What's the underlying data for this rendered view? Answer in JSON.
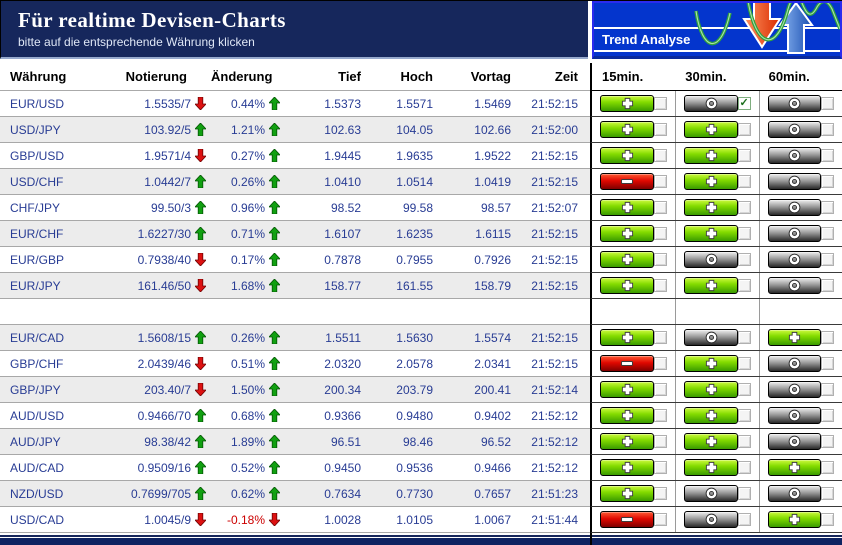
{
  "header": {
    "title": "Für realtime Devisen-Charts",
    "subtitle": "bitte auf die entsprechende Währung klicken",
    "trend_panel_label": "Trend Analyse"
  },
  "colors": {
    "header_navy": "#16275c",
    "panel_blue": "#0435cd",
    "data_text": "#283c94",
    "up_arrow_green": "#11a011",
    "down_arrow_red": "#dd1111",
    "negative_change_text": "#cc0000",
    "row_alt_gray": "#ececec",
    "trend_plus_green": "#84dc00",
    "trend_neutral_gray": "#9a9a9a",
    "trend_minus_red": "#e00800"
  },
  "table": {
    "columns": [
      "Währung",
      "Notierung",
      "Änderung",
      "Tief",
      "Hoch",
      "Vortag",
      "Zeit"
    ],
    "trend_columns": [
      "15min.",
      "30min.",
      "60min."
    ],
    "spacer_after_index": 8,
    "rows": [
      {
        "pair": "EUR/USD",
        "quote": "1.5535/7",
        "quote_dir": "down",
        "change": "0.44%",
        "change_dir": "up",
        "tief": "1.5373",
        "hoch": "1.5571",
        "vortag": "1.5469",
        "zeit": "21:52:15",
        "trends": [
          "plus",
          "neutral",
          "neutral"
        ],
        "checks": [
          false,
          true,
          false
        ]
      },
      {
        "pair": "USD/JPY",
        "quote": "103.92/5",
        "quote_dir": "up",
        "change": "1.21%",
        "change_dir": "up",
        "tief": "102.63",
        "hoch": "104.05",
        "vortag": "102.66",
        "zeit": "21:52:00",
        "trends": [
          "plus",
          "plus",
          "neutral"
        ],
        "checks": [
          false,
          false,
          false
        ]
      },
      {
        "pair": "GBP/USD",
        "quote": "1.9571/4",
        "quote_dir": "down",
        "change": "0.27%",
        "change_dir": "up",
        "tief": "1.9445",
        "hoch": "1.9635",
        "vortag": "1.9522",
        "zeit": "21:52:15",
        "trends": [
          "plus",
          "plus",
          "neutral"
        ],
        "checks": [
          false,
          false,
          false
        ]
      },
      {
        "pair": "USD/CHF",
        "quote": "1.0442/7",
        "quote_dir": "up",
        "change": "0.26%",
        "change_dir": "up",
        "tief": "1.0410",
        "hoch": "1.0514",
        "vortag": "1.0419",
        "zeit": "21:52:15",
        "trends": [
          "minus",
          "plus",
          "neutral"
        ],
        "checks": [
          false,
          false,
          false
        ]
      },
      {
        "pair": "CHF/JPY",
        "quote": "99.50/3",
        "quote_dir": "up",
        "change": "0.96%",
        "change_dir": "up",
        "tief": "98.52",
        "hoch": "99.58",
        "vortag": "98.57",
        "zeit": "21:52:07",
        "trends": [
          "plus",
          "plus",
          "neutral"
        ],
        "checks": [
          false,
          false,
          false
        ]
      },
      {
        "pair": "EUR/CHF",
        "quote": "1.6227/30",
        "quote_dir": "up",
        "change": "0.71%",
        "change_dir": "up",
        "tief": "1.6107",
        "hoch": "1.6235",
        "vortag": "1.6115",
        "zeit": "21:52:15",
        "trends": [
          "plus",
          "plus",
          "neutral"
        ],
        "checks": [
          false,
          false,
          false
        ]
      },
      {
        "pair": "EUR/GBP",
        "quote": "0.7938/40",
        "quote_dir": "down",
        "change": "0.17%",
        "change_dir": "up",
        "tief": "0.7878",
        "hoch": "0.7955",
        "vortag": "0.7926",
        "zeit": "21:52:15",
        "trends": [
          "plus",
          "neutral",
          "neutral"
        ],
        "checks": [
          false,
          false,
          false
        ]
      },
      {
        "pair": "EUR/JPY",
        "quote": "161.46/50",
        "quote_dir": "down",
        "change": "1.68%",
        "change_dir": "up",
        "tief": "158.77",
        "hoch": "161.55",
        "vortag": "158.79",
        "zeit": "21:52:15",
        "trends": [
          "plus",
          "plus",
          "neutral"
        ],
        "checks": [
          false,
          false,
          false
        ]
      },
      {
        "pair": "EUR/CAD",
        "quote": "1.5608/15",
        "quote_dir": "up",
        "change": "0.26%",
        "change_dir": "up",
        "tief": "1.5511",
        "hoch": "1.5630",
        "vortag": "1.5574",
        "zeit": "21:52:15",
        "trends": [
          "plus",
          "neutral",
          "plus"
        ],
        "checks": [
          false,
          false,
          false
        ]
      },
      {
        "pair": "GBP/CHF",
        "quote": "2.0439/46",
        "quote_dir": "down",
        "change": "0.51%",
        "change_dir": "up",
        "tief": "2.0320",
        "hoch": "2.0578",
        "vortag": "2.0341",
        "zeit": "21:52:15",
        "trends": [
          "minus",
          "plus",
          "neutral"
        ],
        "checks": [
          false,
          false,
          false
        ]
      },
      {
        "pair": "GBP/JPY",
        "quote": "203.40/7",
        "quote_dir": "down",
        "change": "1.50%",
        "change_dir": "up",
        "tief": "200.34",
        "hoch": "203.79",
        "vortag": "200.41",
        "zeit": "21:52:14",
        "trends": [
          "plus",
          "plus",
          "neutral"
        ],
        "checks": [
          false,
          false,
          false
        ]
      },
      {
        "pair": "AUD/USD",
        "quote": "0.9466/70",
        "quote_dir": "up",
        "change": "0.68%",
        "change_dir": "up",
        "tief": "0.9366",
        "hoch": "0.9480",
        "vortag": "0.9402",
        "zeit": "21:52:12",
        "trends": [
          "plus",
          "plus",
          "neutral"
        ],
        "checks": [
          false,
          false,
          false
        ]
      },
      {
        "pair": "AUD/JPY",
        "quote": "98.38/42",
        "quote_dir": "up",
        "change": "1.89%",
        "change_dir": "up",
        "tief": "96.51",
        "hoch": "98.46",
        "vortag": "96.52",
        "zeit": "21:52:12",
        "trends": [
          "plus",
          "plus",
          "neutral"
        ],
        "checks": [
          false,
          false,
          false
        ]
      },
      {
        "pair": "AUD/CAD",
        "quote": "0.9509/16",
        "quote_dir": "up",
        "change": "0.52%",
        "change_dir": "up",
        "tief": "0.9450",
        "hoch": "0.9536",
        "vortag": "0.9466",
        "zeit": "21:52:12",
        "trends": [
          "plus",
          "plus",
          "plus"
        ],
        "checks": [
          false,
          false,
          false
        ]
      },
      {
        "pair": "NZD/USD",
        "quote": "0.7699/705",
        "quote_dir": "up",
        "change": "0.62%",
        "change_dir": "up",
        "tief": "0.7634",
        "hoch": "0.7730",
        "vortag": "0.7657",
        "zeit": "21:51:23",
        "trends": [
          "plus",
          "neutral",
          "neutral"
        ],
        "checks": [
          false,
          false,
          false
        ]
      },
      {
        "pair": "USD/CAD",
        "quote": "1.0045/9",
        "quote_dir": "down",
        "change": "-0.18%",
        "change_dir": "down",
        "tief": "1.0028",
        "hoch": "1.0105",
        "vortag": "1.0067",
        "zeit": "21:51:44",
        "trends": [
          "minus",
          "neutral",
          "plus"
        ],
        "checks": [
          false,
          false,
          false
        ]
      }
    ]
  }
}
